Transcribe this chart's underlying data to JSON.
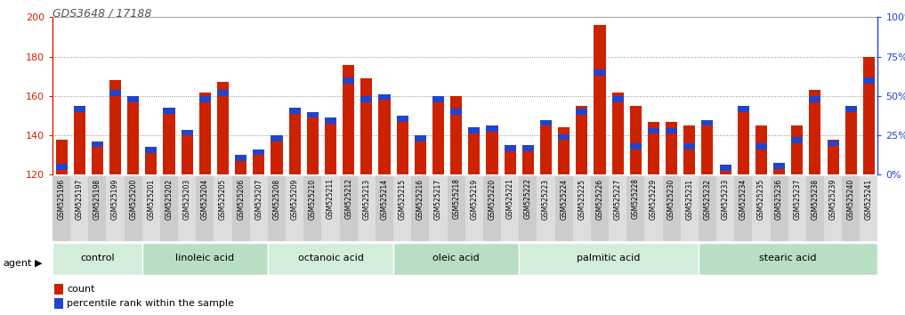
{
  "title": "GDS3648 / 17188",
  "samples": [
    "GSM525196",
    "GSM525197",
    "GSM525198",
    "GSM525199",
    "GSM525200",
    "GSM525201",
    "GSM525202",
    "GSM525203",
    "GSM525204",
    "GSM525205",
    "GSM525206",
    "GSM525207",
    "GSM525208",
    "GSM525209",
    "GSM525210",
    "GSM525211",
    "GSM525212",
    "GSM525213",
    "GSM525214",
    "GSM525215",
    "GSM525216",
    "GSM525217",
    "GSM525218",
    "GSM525219",
    "GSM525220",
    "GSM525221",
    "GSM525222",
    "GSM525223",
    "GSM525224",
    "GSM525225",
    "GSM525226",
    "GSM525227",
    "GSM525228",
    "GSM525229",
    "GSM525230",
    "GSM525231",
    "GSM525232",
    "GSM525233",
    "GSM525234",
    "GSM525235",
    "GSM525236",
    "GSM525237",
    "GSM525238",
    "GSM525239",
    "GSM525240",
    "GSM525241"
  ],
  "counts": [
    138,
    155,
    137,
    168,
    160,
    134,
    154,
    143,
    162,
    167,
    130,
    133,
    140,
    154,
    152,
    149,
    176,
    169,
    161,
    150,
    140,
    160,
    160,
    144,
    145,
    135,
    135,
    148,
    144,
    155,
    196,
    162,
    155,
    147,
    147,
    145,
    148,
    125,
    155,
    145,
    126,
    145,
    163,
    138,
    155,
    180
  ],
  "percentile_ranks": [
    5,
    44,
    24,
    52,
    52,
    20,
    42,
    32,
    48,
    52,
    22,
    22,
    38,
    42,
    40,
    36,
    60,
    48,
    50,
    36,
    38,
    48,
    40,
    34,
    30,
    18,
    36,
    38,
    24,
    40,
    65,
    48,
    18,
    28,
    28,
    18,
    38,
    8,
    42,
    18,
    10,
    22,
    48,
    20,
    44,
    60
  ],
  "groups": [
    {
      "label": "control",
      "start": 0,
      "end": 5
    },
    {
      "label": "linoleic acid",
      "start": 5,
      "end": 12
    },
    {
      "label": "octanoic acid",
      "start": 12,
      "end": 19
    },
    {
      "label": "oleic acid",
      "start": 19,
      "end": 26
    },
    {
      "label": "palmitic acid",
      "start": 26,
      "end": 36
    },
    {
      "label": "stearic acid",
      "start": 36,
      "end": 46
    }
  ],
  "bar_color": "#cc2200",
  "pct_color": "#2244cc",
  "ylim_left": [
    120,
    200
  ],
  "ylim_right": [
    0,
    100
  ],
  "yticks_left": [
    120,
    140,
    160,
    180,
    200
  ],
  "yticks_right": [
    0,
    25,
    50,
    75,
    100
  ],
  "group_colors": [
    "#d4edda",
    "#b8dfc4"
  ],
  "title_color": "#555555",
  "axis_left_color": "#cc2200",
  "axis_right_color": "#2244cc",
  "agent_label": "agent",
  "legend_count_label": "count",
  "legend_pct_label": "percentile rank within the sample",
  "bar_width": 0.65,
  "pct_bar_height": 3.0,
  "xtick_colors": [
    "#cccccc",
    "#dddddd"
  ]
}
